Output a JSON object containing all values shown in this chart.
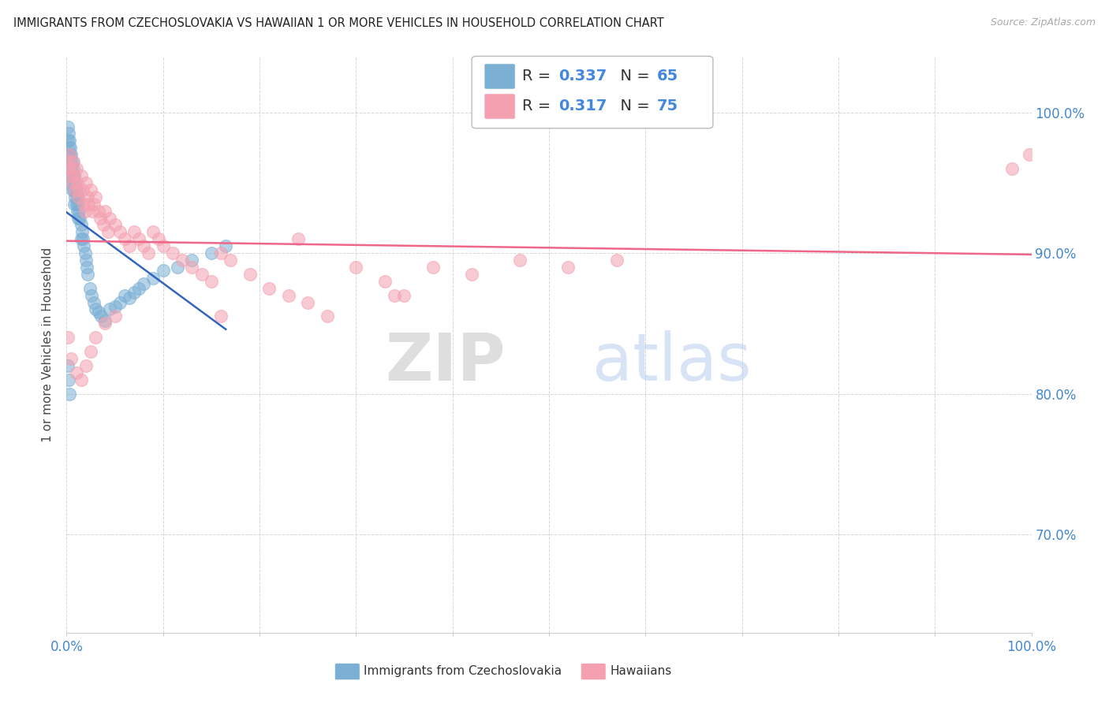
{
  "title": "IMMIGRANTS FROM CZECHOSLOVAKIA VS HAWAIIAN 1 OR MORE VEHICLES IN HOUSEHOLD CORRELATION CHART",
  "source": "Source: ZipAtlas.com",
  "ylabel": "1 or more Vehicles in Household",
  "legend_label1": "Immigrants from Czechoslovakia",
  "legend_label2": "Hawaiians",
  "R1": 0.337,
  "N1": 65,
  "R2": 0.317,
  "N2": 75,
  "color1": "#7bafd4",
  "color2": "#f4a0b0",
  "trendline_color1": "#3366bb",
  "trendline_color2": "#ee6688",
  "xlim": [
    0.0,
    1.0
  ],
  "ylim": [
    0.63,
    1.04
  ],
  "ytick_positions": [
    0.7,
    0.8,
    0.9,
    1.0
  ],
  "ytick_labels": [
    "70.0%",
    "80.0%",
    "90.0%",
    "100.0%"
  ],
  "xtick_positions": [
    0.0,
    0.1,
    0.2,
    0.3,
    0.4,
    0.5,
    0.6,
    0.7,
    0.8,
    0.9,
    1.0
  ],
  "xtick_labels": [
    "0.0%",
    "",
    "",
    "",
    "",
    "",
    "",
    "",
    "",
    "",
    "100.0%"
  ],
  "blue_x": [
    0.001,
    0.001,
    0.002,
    0.002,
    0.002,
    0.003,
    0.003,
    0.003,
    0.004,
    0.004,
    0.004,
    0.005,
    0.005,
    0.005,
    0.006,
    0.006,
    0.006,
    0.007,
    0.007,
    0.008,
    0.008,
    0.008,
    0.009,
    0.009,
    0.01,
    0.01,
    0.011,
    0.011,
    0.012,
    0.012,
    0.013,
    0.014,
    0.015,
    0.015,
    0.016,
    0.017,
    0.018,
    0.019,
    0.02,
    0.021,
    0.022,
    0.024,
    0.026,
    0.028,
    0.03,
    0.033,
    0.036,
    0.04,
    0.045,
    0.05,
    0.055,
    0.06,
    0.065,
    0.07,
    0.075,
    0.08,
    0.09,
    0.1,
    0.115,
    0.13,
    0.15,
    0.165,
    0.001,
    0.002,
    0.003
  ],
  "blue_y": [
    0.99,
    0.98,
    0.985,
    0.975,
    0.97,
    0.98,
    0.97,
    0.96,
    0.975,
    0.965,
    0.955,
    0.97,
    0.96,
    0.95,
    0.965,
    0.955,
    0.945,
    0.96,
    0.95,
    0.955,
    0.945,
    0.935,
    0.95,
    0.94,
    0.945,
    0.935,
    0.94,
    0.93,
    0.935,
    0.925,
    0.93,
    0.925,
    0.92,
    0.91,
    0.915,
    0.91,
    0.905,
    0.9,
    0.895,
    0.89,
    0.885,
    0.875,
    0.87,
    0.865,
    0.86,
    0.858,
    0.855,
    0.852,
    0.86,
    0.862,
    0.865,
    0.87,
    0.868,
    0.872,
    0.875,
    0.878,
    0.882,
    0.888,
    0.89,
    0.895,
    0.9,
    0.905,
    0.82,
    0.81,
    0.8
  ],
  "pink_x": [
    0.001,
    0.002,
    0.003,
    0.004,
    0.005,
    0.006,
    0.007,
    0.008,
    0.009,
    0.01,
    0.011,
    0.012,
    0.013,
    0.015,
    0.017,
    0.018,
    0.019,
    0.02,
    0.022,
    0.023,
    0.025,
    0.027,
    0.028,
    0.03,
    0.033,
    0.035,
    0.038,
    0.04,
    0.043,
    0.045,
    0.05,
    0.055,
    0.06,
    0.065,
    0.07,
    0.075,
    0.08,
    0.085,
    0.09,
    0.095,
    0.1,
    0.11,
    0.12,
    0.13,
    0.14,
    0.15,
    0.16,
    0.17,
    0.19,
    0.21,
    0.23,
    0.25,
    0.27,
    0.3,
    0.33,
    0.35,
    0.38,
    0.42,
    0.47,
    0.52,
    0.57,
    0.16,
    0.24,
    0.34,
    0.001,
    0.005,
    0.01,
    0.015,
    0.02,
    0.025,
    0.03,
    0.04,
    0.05,
    0.98,
    0.998
  ],
  "pink_y": [
    0.965,
    0.96,
    0.97,
    0.955,
    0.96,
    0.95,
    0.965,
    0.955,
    0.945,
    0.96,
    0.95,
    0.94,
    0.945,
    0.955,
    0.945,
    0.935,
    0.93,
    0.95,
    0.94,
    0.935,
    0.945,
    0.93,
    0.935,
    0.94,
    0.93,
    0.925,
    0.92,
    0.93,
    0.915,
    0.925,
    0.92,
    0.915,
    0.91,
    0.905,
    0.915,
    0.91,
    0.905,
    0.9,
    0.915,
    0.91,
    0.905,
    0.9,
    0.895,
    0.89,
    0.885,
    0.88,
    0.9,
    0.895,
    0.885,
    0.875,
    0.87,
    0.865,
    0.855,
    0.89,
    0.88,
    0.87,
    0.89,
    0.885,
    0.895,
    0.89,
    0.895,
    0.855,
    0.91,
    0.87,
    0.84,
    0.825,
    0.815,
    0.81,
    0.82,
    0.83,
    0.84,
    0.85,
    0.855,
    0.96,
    0.97
  ],
  "watermark_zip": "ZIP",
  "watermark_atlas": "atlas",
  "background_color": "#ffffff",
  "grid_color": "#cccccc",
  "title_color": "#222222",
  "axis_label_color": "#444444",
  "tick_color": "#4488cc",
  "legend_R_color": "#333333",
  "legend_N_color": "#4488dd"
}
